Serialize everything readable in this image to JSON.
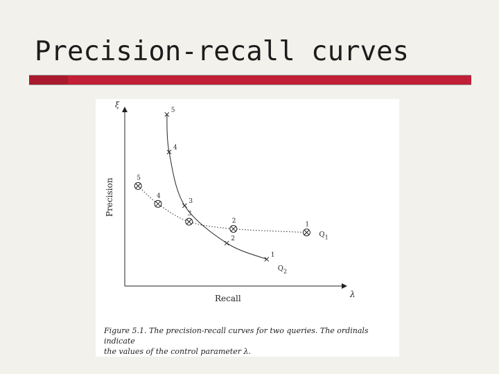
{
  "slide": {
    "title": "Precision-recall curves",
    "accent_color": "#aa1a2e",
    "bar_color": "#c01f36"
  },
  "figure": {
    "caption_line1": "Figure 5.1.  The precision-recall curves for two queries.  The ordinals indicate",
    "caption_line2": "the values of the control parameter λ."
  },
  "chart_data": {
    "type": "line",
    "title": "",
    "xlabel": "Recall",
    "ylabel": "Precision",
    "x_axis_symbol": "λ",
    "y_axis_symbol": "ξ",
    "xlim": [
      0,
      1
    ],
    "ylim": [
      0,
      1
    ],
    "grid": false,
    "series": [
      {
        "name": "Q1",
        "label_text": "Q",
        "label_sub": "1",
        "marker": "circle-x",
        "line_style": "dotted",
        "x": [
          0.06,
          0.15,
          0.29,
          0.49,
          0.82
        ],
        "y": [
          0.56,
          0.46,
          0.36,
          0.32,
          0.3
        ],
        "ordinals": [
          "5",
          "4",
          "3",
          "2",
          "1"
        ]
      },
      {
        "name": "Q2",
        "label_text": "Q",
        "label_sub": "2",
        "marker": "x",
        "line_style": "solid",
        "x": [
          0.19,
          0.2,
          0.27,
          0.46,
          0.64
        ],
        "y": [
          0.96,
          0.75,
          0.45,
          0.24,
          0.15
        ],
        "ordinals": [
          "5",
          "4",
          "3",
          "2",
          "1"
        ]
      }
    ]
  }
}
